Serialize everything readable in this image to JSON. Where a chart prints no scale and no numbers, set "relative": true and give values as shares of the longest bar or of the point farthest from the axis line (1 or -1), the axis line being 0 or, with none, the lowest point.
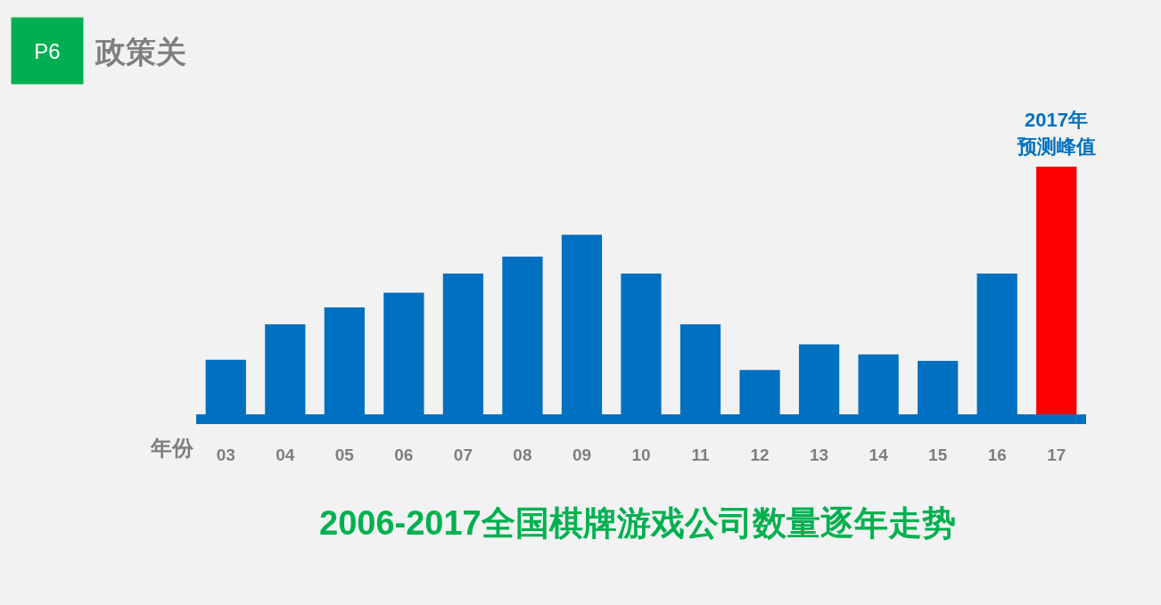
{
  "chart_data": {
    "type": "bar",
    "title": "政策关",
    "xlabel": "年份",
    "relative": true,
    "categories": [
      "03",
      "04",
      "05",
      "06",
      "07",
      "08",
      "09",
      "10",
      "11",
      "12",
      "13",
      "14",
      "15",
      "16",
      "17"
    ],
    "values": [
      0.22,
      0.363,
      0.432,
      0.491,
      0.568,
      0.637,
      0.725,
      0.568,
      0.363,
      0.179,
      0.282,
      0.242,
      0.216,
      0.568,
      1
    ],
    "colors": [
      "#0070c0",
      "#0070c0",
      "#0070c0",
      "#0070c0",
      "#0070c0",
      "#0070c0",
      "#0070c0",
      "#0070c0",
      "#0070c0",
      "#0070c0",
      "#0070c0",
      "#0070c0",
      "#0070c0",
      "#0070c0",
      "#ff0000"
    ],
    "annotations": [
      "P6",
      "2006-2017全国棋牌游戏公司数量逐年走势",
      {
        "text": "2017年",
        "x": "17",
        "y": 1
      },
      {
        "text": "预测峰值",
        "x": "17",
        "y": 1
      }
    ]
  }
}
